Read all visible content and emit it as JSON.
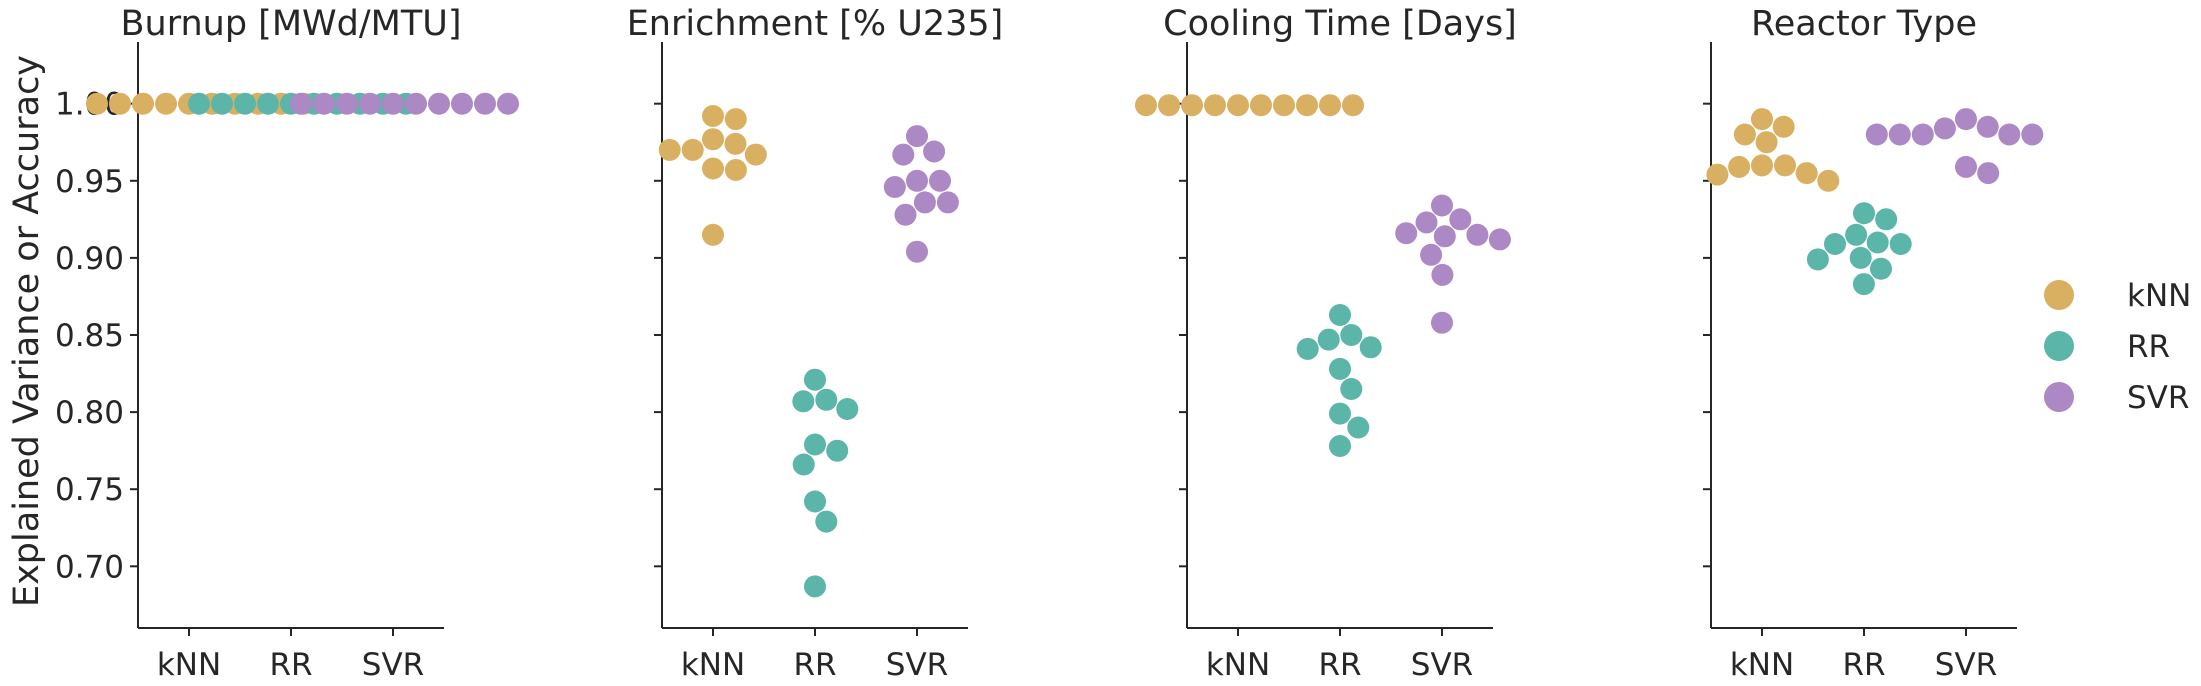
{
  "chart_data": {
    "type": "scatter",
    "subtype": "swarm",
    "ylabel": "Explained Variance or Accuracy",
    "ylim": [
      0.66,
      1.04
    ],
    "yticks": [
      0.7,
      0.75,
      0.8,
      0.85,
      0.9,
      0.95,
      1.0
    ],
    "yticklabels": [
      "0.70",
      "0.75",
      "0.80",
      "0.85",
      "0.90",
      "0.95",
      "1.00"
    ],
    "categories": [
      "kNN",
      "RR",
      "SVR"
    ],
    "colors": {
      "kNN": "#d9b061",
      "RR": "#5bb5a8",
      "SVR": "#ac88c4"
    },
    "legend": {
      "position": "right",
      "entries": [
        "kNN",
        "RR",
        "SVR"
      ]
    },
    "grid": false,
    "panels": [
      {
        "title": "Burnup [MWd/MTU]",
        "series": [
          {
            "name": "kNN",
            "values": [
              1.0,
              1.0,
              1.0,
              1.0,
              1.0,
              1.0,
              1.0,
              1.0,
              1.0,
              1.0
            ]
          },
          {
            "name": "RR",
            "values": [
              1.0,
              1.0,
              1.0,
              1.0,
              1.0,
              1.0,
              1.0,
              1.0,
              1.0,
              1.0
            ]
          },
          {
            "name": "SVR",
            "values": [
              1.0,
              1.0,
              1.0,
              1.0,
              1.0,
              1.0,
              1.0,
              1.0,
              1.0,
              1.0
            ]
          }
        ]
      },
      {
        "title": "Enrichment [% U235]",
        "series": [
          {
            "name": "kNN",
            "values": [
              0.992,
              0.99,
              0.977,
              0.974,
              0.97,
              0.97,
              0.967,
              0.958,
              0.957,
              0.915
            ]
          },
          {
            "name": "RR",
            "values": [
              0.821,
              0.808,
              0.807,
              0.802,
              0.779,
              0.775,
              0.766,
              0.742,
              0.729,
              0.687
            ]
          },
          {
            "name": "SVR",
            "values": [
              0.979,
              0.969,
              0.967,
              0.95,
              0.95,
              0.946,
              0.936,
              0.936,
              0.928,
              0.904
            ]
          }
        ]
      },
      {
        "title": "Cooling Time [Days]",
        "series": [
          {
            "name": "kNN",
            "values": [
              0.999,
              0.999,
              0.999,
              0.999,
              0.999,
              0.999,
              0.999,
              0.999,
              0.999,
              0.999
            ]
          },
          {
            "name": "RR",
            "values": [
              0.863,
              0.85,
              0.847,
              0.842,
              0.841,
              0.828,
              0.815,
              0.799,
              0.79,
              0.778
            ]
          },
          {
            "name": "SVR",
            "values": [
              0.934,
              0.925,
              0.923,
              0.916,
              0.915,
              0.914,
              0.912,
              0.902,
              0.889,
              0.858
            ]
          }
        ]
      },
      {
        "title": "Reactor Type",
        "series": [
          {
            "name": "kNN",
            "values": [
              0.99,
              0.985,
              0.98,
              0.975,
              0.96,
              0.96,
              0.959,
              0.955,
              0.954,
              0.95
            ]
          },
          {
            "name": "RR",
            "values": [
              0.929,
              0.925,
              0.915,
              0.91,
              0.909,
              0.909,
              0.9,
              0.899,
              0.893,
              0.883
            ]
          },
          {
            "name": "SVR",
            "values": [
              0.99,
              0.985,
              0.984,
              0.98,
              0.98,
              0.98,
              0.98,
              0.98,
              0.959,
              0.955
            ]
          }
        ]
      }
    ]
  }
}
